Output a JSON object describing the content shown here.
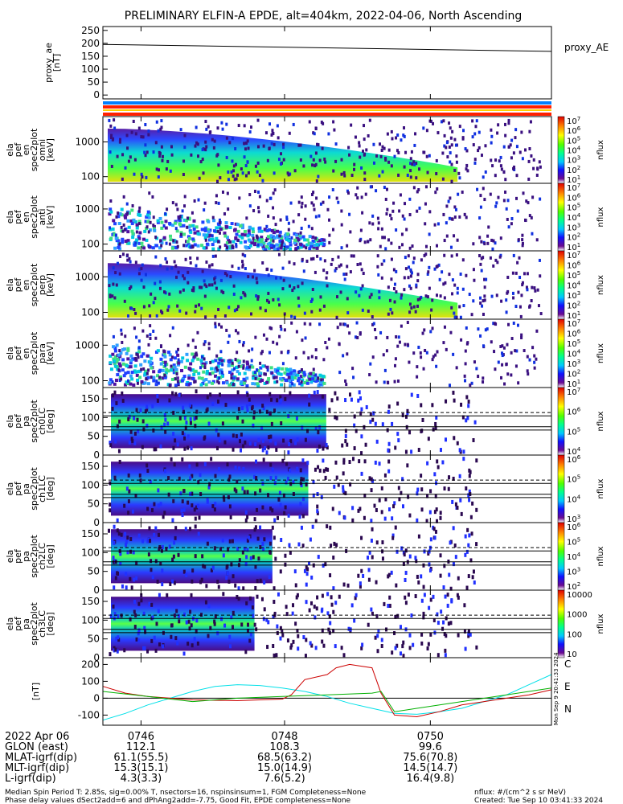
{
  "title": "PRELIMINARY ELFIN-A EPDE, alt=404km, 2022-04-06, North Ascending",
  "chart_data": [
    {
      "type": "line",
      "panel": "proxy_ae",
      "ylabel_lines": [
        "proxy_ae",
        "[nT]"
      ],
      "legend": "proxy_AE",
      "yticks": [
        "250",
        "200",
        "150",
        "100",
        "50",
        "0"
      ],
      "ylim": [
        -15,
        265
      ],
      "series": [
        {
          "x": [
            0,
            1
          ],
          "values": [
            196,
            169
          ],
          "color": "#000000"
        }
      ]
    },
    {
      "type": "heatmap",
      "panel": "en1",
      "ylabel_lines": [
        "ela",
        "pef",
        "en",
        "spec2plot",
        "omni",
        "[keV]"
      ],
      "yticks": [
        "1000",
        "100"
      ],
      "ylog": true,
      "colorbar": {
        "label": "nflux",
        "ticks": [
          "10^7",
          "10^6",
          "10^5",
          "10^4",
          "10^3",
          "10^2",
          "10^1"
        ]
      }
    },
    {
      "type": "heatmap",
      "panel": "en2",
      "ylabel_lines": [
        "ela",
        "pef",
        "en",
        "spec2plot",
        "anti",
        "[keV]"
      ],
      "yticks": [
        "1000",
        "100"
      ],
      "ylog": true,
      "colorbar": {
        "label": "nflux",
        "ticks": [
          "10^7",
          "10^6",
          "10^5",
          "10^4",
          "10^3",
          "10^2",
          "10^1"
        ]
      }
    },
    {
      "type": "heatmap",
      "panel": "en3",
      "ylabel_lines": [
        "ela",
        "pef",
        "en",
        "spec2plot",
        "perp",
        "[keV]"
      ],
      "yticks": [
        "1000",
        "100"
      ],
      "ylog": true,
      "colorbar": {
        "label": "nflux",
        "ticks": [
          "10^7",
          "10^6",
          "10^5",
          "10^4",
          "10^3",
          "10^2",
          "10^1"
        ]
      }
    },
    {
      "type": "heatmap",
      "panel": "en4",
      "ylabel_lines": [
        "ela",
        "pef",
        "en",
        "spec2plot",
        "para",
        "[keV]"
      ],
      "yticks": [
        "1000",
        "100"
      ],
      "ylog": true,
      "colorbar": {
        "label": "nflux",
        "ticks": [
          "10^7",
          "10^6",
          "10^5",
          "10^4",
          "10^3",
          "10^2",
          "10^1"
        ]
      }
    },
    {
      "type": "heatmap",
      "panel": "pa0",
      "ylabel_lines": [
        "ela",
        "pef",
        "pa",
        "spec2plot",
        "ch0LC",
        "[deg]"
      ],
      "yticks": [
        "150",
        "100",
        "50",
        "0"
      ],
      "ylim": [
        0,
        180
      ],
      "colorbar": {
        "label": "nflux",
        "ticks": [
          "10^7",
          "10^6",
          "10^5",
          "10^4"
        ]
      }
    },
    {
      "type": "heatmap",
      "panel": "pa1",
      "ylabel_lines": [
        "ela",
        "pef",
        "pa",
        "spec2plot",
        "ch1LC",
        "[deg]"
      ],
      "yticks": [
        "150",
        "100",
        "50",
        "0"
      ],
      "ylim": [
        0,
        180
      ],
      "colorbar": {
        "label": "nflux",
        "ticks": [
          "10^6",
          "10^5",
          "10^4",
          "10^3"
        ]
      }
    },
    {
      "type": "heatmap",
      "panel": "pa2",
      "ylabel_lines": [
        "ela",
        "pef",
        "pa",
        "spec2plot",
        "ch2LC",
        "[deg]"
      ],
      "yticks": [
        "150",
        "100",
        "50",
        "0"
      ],
      "ylim": [
        0,
        180
      ],
      "colorbar": {
        "label": "nflux",
        "ticks": [
          "10^6",
          "10^5",
          "10^4",
          "10^3",
          "10^2"
        ]
      }
    },
    {
      "type": "heatmap",
      "panel": "pa3",
      "ylabel_lines": [
        "ela",
        "pef",
        "pa",
        "spec2plot",
        "ch3LC",
        "[deg]"
      ],
      "yticks": [
        "150",
        "100",
        "50",
        "0"
      ],
      "ylim": [
        0,
        180
      ],
      "colorbar": {
        "label": "nflux",
        "ticks": [
          "10000",
          "1000",
          "100",
          "10"
        ]
      }
    },
    {
      "type": "line",
      "panel": "mag",
      "ylabel_lines": [
        "[nT]"
      ],
      "yticks": [
        "200",
        "100",
        "0",
        "-100"
      ],
      "ylim": [
        -160,
        240
      ],
      "series": [
        {
          "name": "C",
          "color": "#00e0e8",
          "x": [
            0,
            0.05,
            0.1,
            0.15,
            0.2,
            0.25,
            0.3,
            0.35,
            0.4,
            0.45,
            0.5,
            0.55,
            0.6,
            0.65,
            0.7,
            0.75,
            0.8,
            0.85,
            0.9,
            0.95,
            1
          ],
          "values": [
            -130,
            -90,
            -40,
            0,
            40,
            70,
            80,
            75,
            60,
            40,
            10,
            -30,
            -60,
            -90,
            -95,
            -80,
            -60,
            -20,
            20,
            80,
            140
          ]
        },
        {
          "name": "E",
          "color": "#cc0000",
          "x": [
            0,
            0.05,
            0.1,
            0.15,
            0.2,
            0.3,
            0.4,
            0.42,
            0.45,
            0.5,
            0.52,
            0.55,
            0.6,
            0.62,
            0.65,
            0.7,
            0.75,
            0.8,
            0.85,
            0.9,
            0.95,
            1
          ],
          "values": [
            70,
            30,
            10,
            0,
            -10,
            -15,
            -5,
            20,
            110,
            140,
            180,
            200,
            180,
            30,
            -100,
            -110,
            -80,
            -40,
            -20,
            0,
            20,
            50
          ]
        },
        {
          "name": "N",
          "color": "#00b000",
          "x": [
            0,
            0.1,
            0.2,
            0.3,
            0.4,
            0.5,
            0.6,
            0.62,
            0.65,
            0.7,
            0.8,
            0.9,
            1
          ],
          "values": [
            40,
            10,
            -20,
            0,
            10,
            20,
            30,
            40,
            -80,
            -60,
            -20,
            20,
            60
          ]
        }
      ]
    }
  ],
  "time_axis": {
    "labels": [
      "0746",
      "0748",
      "0750"
    ],
    "timestamp": "Mon Sep 9 20:41:33 2024"
  },
  "ephemeris": {
    "rows": [
      {
        "label": "2022 Apr 06",
        "values": [
          "",
          "",
          ""
        ]
      },
      {
        "label": "GLON (east)",
        "values": [
          "112.1",
          "108.3",
          "99.6"
        ]
      },
      {
        "label": "MLAT-igrf(dip)",
        "values": [
          "61.1(55.5)",
          "68.5(63.2)",
          "75.6(70.8)"
        ]
      },
      {
        "label": "MLT-igrf(dip)",
        "values": [
          "15.3(15.1)",
          "15.0(14.9)",
          "14.5(14.7)"
        ]
      },
      {
        "label": "L-igrf(dip)",
        "values": [
          "4.3(3.3)",
          "7.6(5.2)",
          "16.4(9.8)"
        ]
      }
    ]
  },
  "footer": {
    "left_line1": "Median Spin Period T: 2.85s, sig=0.00% T, nsectors=16, nspinsinsum=1, FGM Completeness=None",
    "left_line2": "Phase delay values dSect2add=6 and dPhAng2add=-7.75, Good Fit, EPDE completeness=None",
    "right_line1": "nflux: #/(cm^2 s sr MeV)",
    "right_line2": "Created: Tue Sep 10 03:41:33 2024"
  },
  "bars_colors": [
    "#0080ff",
    "#ff2000",
    "#ffd000",
    "#ff2000"
  ]
}
